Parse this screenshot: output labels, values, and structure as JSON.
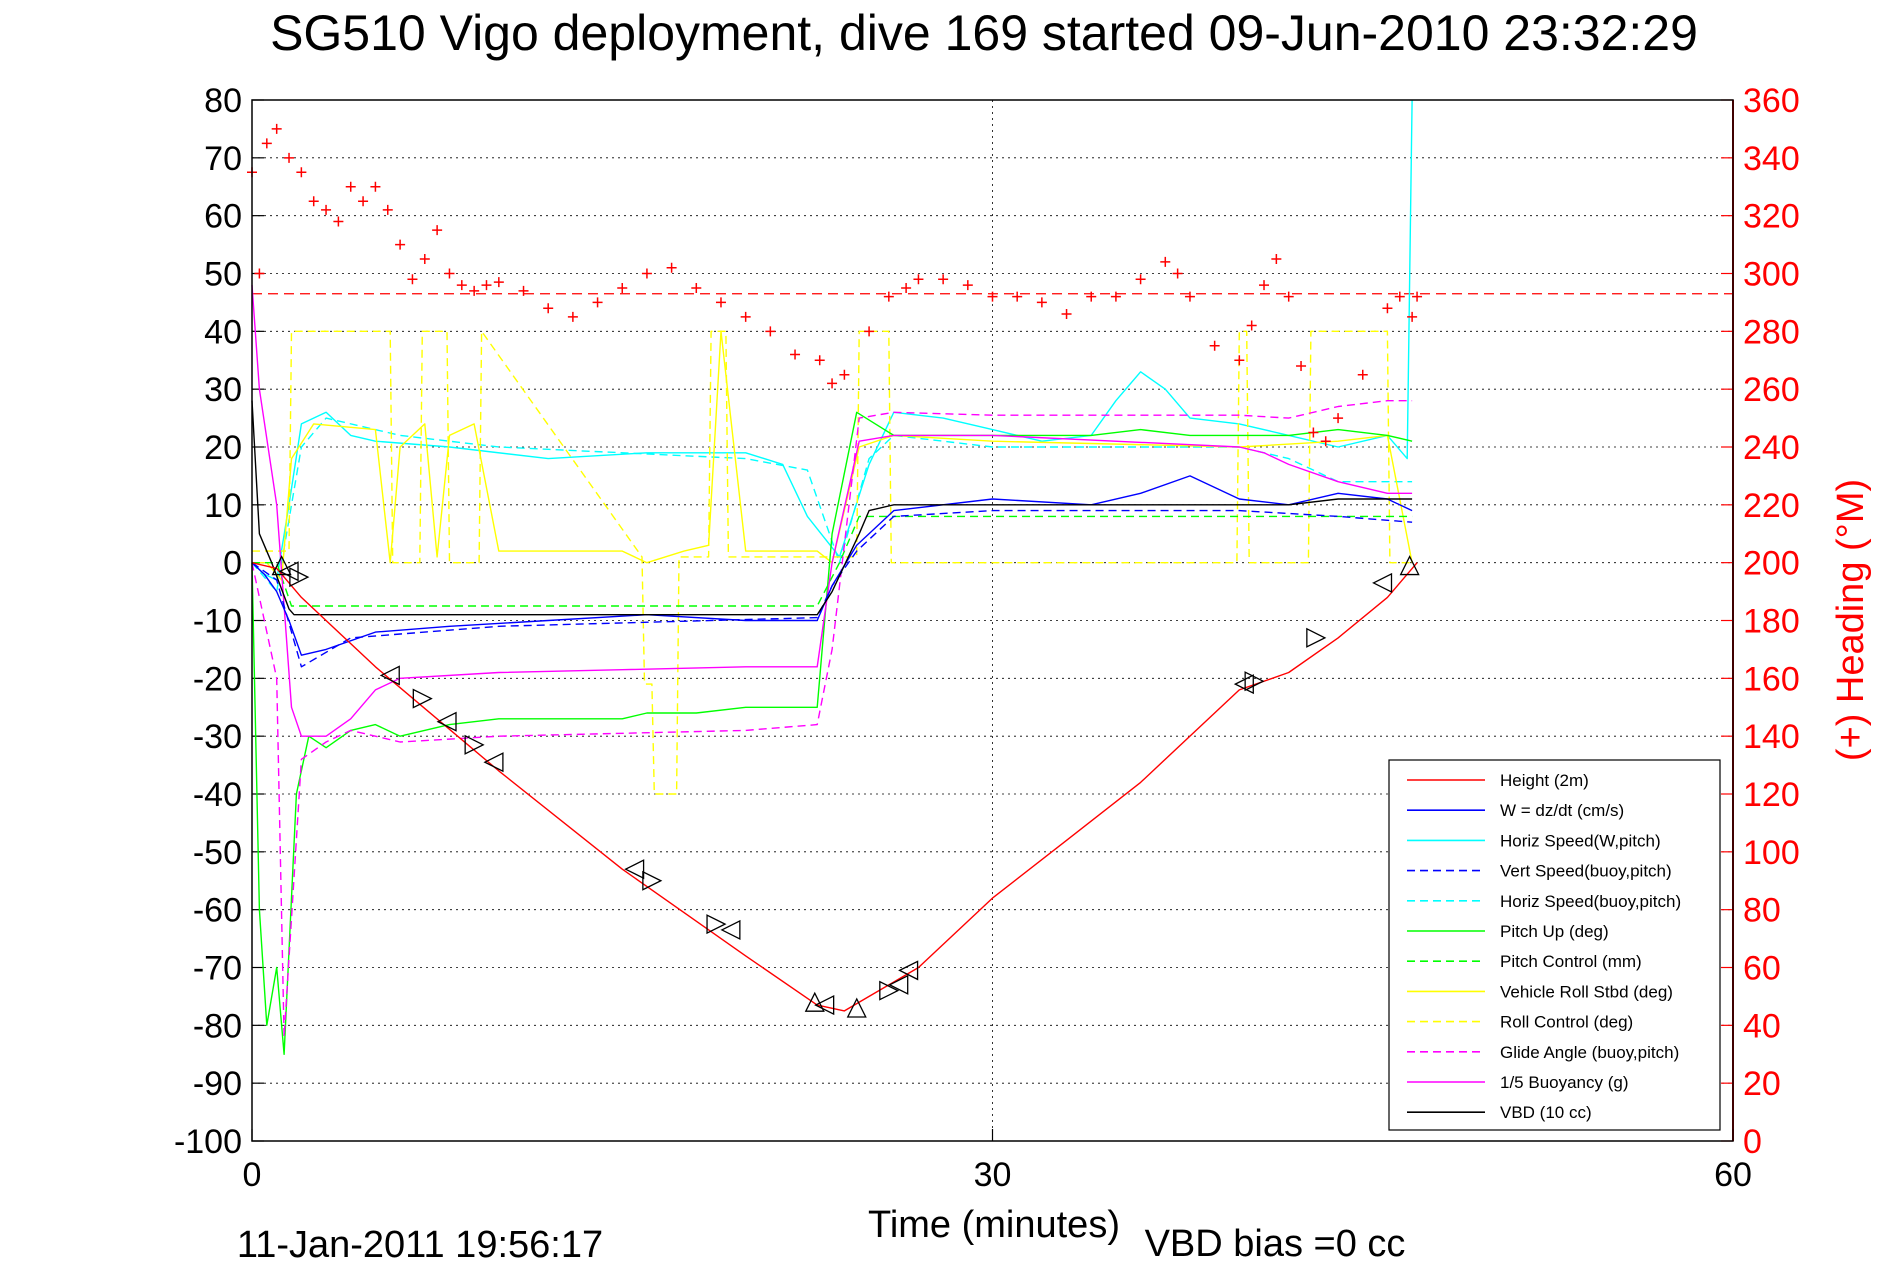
{
  "chart_data": {
    "type": "line",
    "title": "SG510 Vigo deployment, dive 169 started 09-Jun-2010 23:32:29",
    "xlabel": "Time (minutes)",
    "ylabel_right": "(+) Heading (°M)",
    "footer_left": "11-Jan-2011 19:56:17",
    "footer_right": "VBD bias =0 cc",
    "xlim": [
      0,
      60
    ],
    "ylim": [
      -100,
      80
    ],
    "ylim_right": [
      0,
      360
    ],
    "x_ticks": [
      "0",
      "30",
      "60"
    ],
    "y_ticks": [
      "80",
      "70",
      "60",
      "50",
      "40",
      "30",
      "20",
      "10",
      "0",
      "-10",
      "-20",
      "-30",
      "-40",
      "-50",
      "-60",
      "-70",
      "-80",
      "-90",
      "-100"
    ],
    "y_ticks_right": [
      "360",
      "340",
      "320",
      "300",
      "280",
      "260",
      "240",
      "220",
      "200",
      "180",
      "160",
      "140",
      "120",
      "100",
      "80",
      "60",
      "40",
      "20",
      "0"
    ],
    "grid": true,
    "legend_position": "bottom-right",
    "colors": {
      "height": "#ff0000",
      "w": "#0000ff",
      "horiz_w": "#00ffff",
      "vert_buoy": "#0000ff",
      "horiz_buoy": "#00ffff",
      "pitch": "#00ff00",
      "pitch_ctl": "#00ff00",
      "roll": "#ffff00",
      "roll_ctl": "#ffff00",
      "glide": "#ff00ff",
      "buoyancy": "#ff00ff",
      "vbd": "#000000",
      "heading": "#ff0000"
    },
    "series": [
      {
        "key": "height",
        "name": "Height (2m)",
        "style": "solid",
        "color": "#ff0000",
        "x": [
          0,
          1,
          2,
          5,
          10,
          15,
          20,
          22.9,
          24,
          25,
          27,
          30,
          33,
          36,
          40,
          42,
          44,
          46,
          47.2
        ],
        "y": [
          0,
          -1,
          -6,
          -18,
          -36,
          -53,
          -68,
          -76.5,
          -77.5,
          -75,
          -70,
          -58,
          -48,
          -38,
          -22,
          -19,
          -13,
          -6,
          0
        ]
      },
      {
        "key": "w",
        "name": "W = dz/dt (cm/s)",
        "style": "solid",
        "color": "#0000ff",
        "x": [
          0,
          0.5,
          1,
          1.5,
          2,
          3,
          5,
          8,
          12,
          16,
          20,
          22.9,
          23.5,
          24.5,
          26,
          30,
          34,
          36,
          38,
          40,
          42,
          44,
          46,
          47
        ],
        "y": [
          0,
          -2,
          -5,
          -10,
          -16,
          -15,
          -12,
          -11,
          -10,
          -9,
          -10,
          -10,
          -4,
          3,
          9,
          11,
          10,
          12,
          15,
          11,
          10,
          12,
          11,
          9
        ]
      },
      {
        "key": "horiz_w",
        "name": "Horiz Speed(W,pitch)",
        "style": "solid",
        "color": "#00ffff",
        "x": [
          0,
          0.5,
          1,
          1.5,
          2,
          3,
          4,
          5,
          8,
          12,
          16,
          20,
          21.5,
          22.5,
          23.8,
          25,
          26,
          28,
          30,
          32,
          34,
          35,
          36,
          37,
          38,
          40,
          42,
          44,
          46,
          46.8,
          47
        ],
        "y": [
          0,
          -2,
          -3,
          10,
          24,
          26,
          22,
          21,
          20,
          18,
          19,
          19,
          17,
          8,
          1,
          17,
          26,
          25,
          23,
          21,
          22,
          28,
          33,
          30,
          25,
          24,
          22,
          20,
          22,
          18,
          80
        ]
      },
      {
        "key": "vert_buoy",
        "name": "Vert Speed(buoy,pitch)",
        "style": "dashed",
        "color": "#0000ff",
        "x": [
          0,
          1,
          2,
          4,
          10,
          22.9,
          23.5,
          24.5,
          26,
          30,
          40,
          44,
          47
        ],
        "y": [
          0,
          -3,
          -18,
          -13,
          -11,
          -9.5,
          -4,
          2,
          8,
          9,
          9,
          8,
          7
        ]
      },
      {
        "key": "horiz_buoy",
        "name": "Horiz Speed(buoy,pitch)",
        "style": "dashed",
        "color": "#00ffff",
        "x": [
          0,
          1,
          2,
          3,
          6,
          10,
          20,
          22.5,
          23.8,
          25,
          26,
          30,
          40,
          42,
          44,
          47
        ],
        "y": [
          0,
          -5,
          20,
          25,
          22,
          20,
          18,
          16,
          0,
          18,
          22,
          20,
          20,
          18,
          14,
          14
        ]
      },
      {
        "key": "pitch",
        "name": "Pitch Up (deg)",
        "style": "solid",
        "color": "#00ff00",
        "x": [
          0,
          0.3,
          0.6,
          1,
          1.3,
          1.8,
          2.3,
          3,
          4,
          5,
          6,
          8,
          10,
          12,
          15,
          16,
          18,
          20,
          22,
          22.9,
          23.5,
          24.5,
          26,
          30,
          34,
          36,
          38,
          40,
          42,
          44,
          46,
          47
        ],
        "y": [
          0,
          -60,
          -80,
          -70,
          -85,
          -40,
          -30,
          -32,
          -29,
          -28,
          -30,
          -28,
          -27,
          -27,
          -27,
          -26,
          -26,
          -25,
          -25,
          -25,
          5,
          26,
          22,
          22,
          22,
          23,
          22,
          22,
          22,
          23,
          22,
          21
        ]
      },
      {
        "key": "pitch_ctl",
        "name": "Pitch Control (mm)",
        "style": "dashed",
        "color": "#00ff00",
        "x": [
          0,
          1,
          1.6,
          22.9,
          23.8,
          24.6,
          47
        ],
        "y": [
          0,
          0,
          -7.5,
          -7.5,
          0,
          8,
          8
        ]
      },
      {
        "key": "roll",
        "name": "Vehicle Roll Stbd (deg)",
        "style": "solid",
        "color": "#ffff00",
        "x": [
          0,
          0.6,
          1.2,
          1.6,
          2.5,
          5,
          5.6,
          6,
          7,
          7.5,
          8,
          9,
          10,
          15,
          16,
          17.5,
          18.5,
          19,
          20,
          22.9,
          23.5,
          24.6,
          26,
          30,
          40,
          44,
          46,
          47
        ],
        "y": [
          0,
          0,
          -3,
          18,
          24,
          23,
          0,
          20,
          24,
          1,
          22,
          24,
          2,
          2,
          0,
          2,
          3,
          40,
          2,
          2,
          0,
          20,
          22,
          21,
          20,
          21,
          22,
          0
        ]
      },
      {
        "key": "roll_ctl",
        "name": "Roll Control (deg)",
        "style": "dashed",
        "color": "#ffff00",
        "x": [
          0,
          1.5,
          1.6,
          5.6,
          5.7,
          6.8,
          6.9,
          7.9,
          8,
          9.2,
          9.3,
          15.8,
          15.9,
          16.2,
          16.3,
          17.2,
          17.3,
          18.5,
          18.6,
          19.2,
          19.3,
          24.5,
          24.6,
          25.8,
          25.9,
          39.9,
          40,
          40.3,
          40.4,
          42.8,
          42.9,
          46,
          46.1,
          47
        ],
        "y": [
          2,
          2,
          40,
          40,
          0,
          0,
          40,
          40,
          0,
          0,
          40,
          1,
          -21,
          -21,
          -40,
          -40,
          1,
          1,
          40,
          40,
          1,
          1,
          40,
          40,
          0,
          0,
          40,
          40,
          0,
          0,
          40,
          40,
          0,
          0
        ]
      },
      {
        "key": "glide",
        "name": "Glide Angle (buoy,pitch)",
        "style": "dashed",
        "color": "#ff00ff",
        "x": [
          0,
          1,
          1.3,
          2,
          3,
          4,
          6,
          10,
          20,
          22.9,
          23.5,
          24.6,
          26,
          30,
          40,
          42,
          44,
          46,
          47
        ],
        "y": [
          0,
          -20,
          -82,
          -34,
          -31,
          -29,
          -31,
          -30,
          -29,
          -28,
          -15,
          25,
          26,
          25.5,
          25.5,
          25,
          27,
          28,
          28
        ]
      },
      {
        "key": "buoyancy",
        "name": "1/5 Buoyancy (g)",
        "style": "solid",
        "color": "#ff00ff",
        "x": [
          0,
          0.3,
          1,
          1.6,
          2,
          3,
          4,
          5,
          6,
          10,
          15,
          20,
          22.9,
          23.5,
          24.6,
          26,
          30,
          40,
          41,
          42,
          44,
          46,
          47
        ],
        "y": [
          48,
          30,
          10,
          -25,
          -30,
          -30,
          -27,
          -22,
          -20,
          -19,
          -18.5,
          -18,
          -18,
          0,
          21,
          22,
          22,
          20,
          19,
          17,
          14,
          12,
          12
        ]
      },
      {
        "key": "vbd",
        "name": "VBD (10 cc)",
        "style": "solid",
        "color": "#000000",
        "x": [
          0,
          0.3,
          0.8,
          1.5,
          1.7,
          22.9,
          23.5,
          24.6,
          25,
          26,
          40,
          42,
          44,
          47
        ],
        "y": [
          28,
          5,
          0,
          -8,
          -9,
          -9,
          -5,
          5,
          9,
          10,
          10,
          10,
          11,
          11
        ]
      },
      {
        "key": "heading",
        "name": "(+) Heading (°M)",
        "style": "plus",
        "axis": "right",
        "color": "#ff0000",
        "x": [
          0,
          0.3,
          0.6,
          1,
          1.5,
          2,
          2.5,
          3,
          3.5,
          4,
          4.5,
          5,
          5.5,
          6,
          6.5,
          7,
          7.5,
          8,
          8.5,
          9,
          9.5,
          10,
          11,
          12,
          13,
          14,
          15,
          16,
          17,
          18,
          19,
          20,
          21,
          22,
          23,
          23.5,
          24,
          25,
          25.8,
          26.5,
          27,
          28,
          29,
          30,
          31,
          32,
          33,
          34,
          35,
          36,
          37,
          37.5,
          38,
          39,
          40,
          40.5,
          41,
          41.5,
          42,
          42.5,
          43,
          43.5,
          44,
          45,
          46,
          46.5,
          47,
          47.2
        ],
        "y": [
          335,
          300,
          345,
          350,
          340,
          335,
          325,
          322,
          318,
          330,
          325,
          330,
          322,
          310,
          298,
          305,
          315,
          300,
          296,
          294,
          296,
          297,
          294,
          288,
          285,
          290,
          295,
          300,
          302,
          295,
          290,
          285,
          280,
          272,
          270,
          262,
          265,
          280,
          292,
          295,
          298,
          298,
          296,
          292,
          292,
          290,
          286,
          292,
          292,
          298,
          304,
          300,
          292,
          275,
          270,
          282,
          296,
          305,
          292,
          268,
          245,
          242,
          250,
          265,
          288,
          292,
          285,
          292
        ]
      }
    ],
    "legend": [
      "Height (2m)",
      "W = dz/dt (cm/s)",
      "Horiz Speed(W,pitch)",
      "Vert Speed(buoy,pitch)",
      "Horiz Speed(buoy,pitch)",
      "Pitch Up (deg)",
      "Pitch Control (mm)",
      "Vehicle Roll Stbd (deg)",
      "Roll Control (deg)",
      "Glide Angle (buoy,pitch)",
      "1/5 Buoyancy (g)",
      "VBD (10 cc)"
    ],
    "reference_line": {
      "axis": "right",
      "value": 293,
      "style": "dashed",
      "color": "#ff0000"
    },
    "markers": [
      {
        "x": 1.2,
        "y": -0.5,
        "dir": "up"
      },
      {
        "x": 1.5,
        "y": -1.5,
        "dir": "left"
      },
      {
        "x": 1.9,
        "y": -2.5,
        "dir": "right"
      },
      {
        "x": 5.6,
        "y": -19.5,
        "dir": "left"
      },
      {
        "x": 6.9,
        "y": -23.5,
        "dir": "right"
      },
      {
        "x": 7.9,
        "y": -27.5,
        "dir": "left"
      },
      {
        "x": 9.0,
        "y": -31.5,
        "dir": "right"
      },
      {
        "x": 9.8,
        "y": -34.5,
        "dir": "left"
      },
      {
        "x": 15.5,
        "y": -53,
        "dir": "left"
      },
      {
        "x": 16.2,
        "y": -55,
        "dir": "right"
      },
      {
        "x": 18.8,
        "y": -62.5,
        "dir": "right"
      },
      {
        "x": 19.4,
        "y": -63.5,
        "dir": "left"
      },
      {
        "x": 22.8,
        "y": -76,
        "dir": "up"
      },
      {
        "x": 23.2,
        "y": -76.5,
        "dir": "left"
      },
      {
        "x": 24.5,
        "y": -77,
        "dir": "up"
      },
      {
        "x": 25.8,
        "y": -74,
        "dir": "right"
      },
      {
        "x": 26.2,
        "y": -73,
        "dir": "left"
      },
      {
        "x": 26.6,
        "y": -70.5,
        "dir": "left"
      },
      {
        "x": 40.2,
        "y": -21,
        "dir": "left"
      },
      {
        "x": 40.6,
        "y": -20.5,
        "dir": "right"
      },
      {
        "x": 43.1,
        "y": -13,
        "dir": "right"
      },
      {
        "x": 45.8,
        "y": -3.5,
        "dir": "left"
      },
      {
        "x": 46.9,
        "y": -0.5,
        "dir": "up"
      }
    ]
  }
}
